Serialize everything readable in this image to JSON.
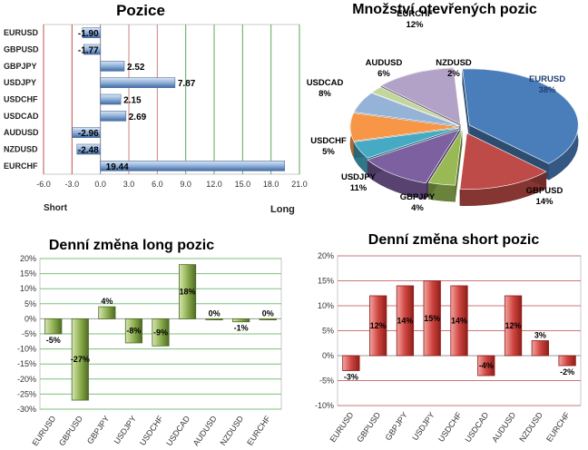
{
  "chart_data": [
    {
      "id": "pozice",
      "type": "bar",
      "orientation": "horizontal",
      "title": "Pozice",
      "categories": [
        "EURUSD",
        "GBPUSD",
        "GBPJPY",
        "USDJPY",
        "USDCHF",
        "USDCAD",
        "AUDUSD",
        "NZDUSD",
        "EURCHF"
      ],
      "values": [
        -1.9,
        -1.77,
        2.52,
        7.87,
        2.15,
        2.69,
        -2.96,
        -2.48,
        19.44
      ],
      "value_labels": [
        "-1.90",
        "-1.77",
        "2.52",
        "7.87",
        "2.15",
        "2.69",
        "-2.96",
        "-2.48",
        "19.44"
      ],
      "xlim": [
        -6.0,
        21.0
      ],
      "xticks": [
        "-6.0",
        "-3.0",
        "0.0",
        "3.0",
        "6.0",
        "9.0",
        "12.0",
        "15.0",
        "18.0",
        "21.0"
      ],
      "left_label": "Short",
      "right_label": "Long",
      "grid": true
    },
    {
      "id": "mnozstvi",
      "type": "pie",
      "title": "Množství otevřených pozic",
      "labels": [
        "EURUSD",
        "GBPUSD",
        "GBPJPY",
        "USDJPY",
        "USDCHF",
        "USDCAD",
        "AUDUSD",
        "NZDUSD",
        "EURCHF"
      ],
      "values": [
        38,
        14,
        4,
        11,
        5,
        8,
        6,
        2,
        12
      ],
      "value_labels": [
        "38%",
        "14%",
        "4%",
        "11%",
        "5%",
        "8%",
        "6%",
        "2%",
        "12%"
      ],
      "colors": [
        "#4a7ebb",
        "#be4b48",
        "#98b954",
        "#7d60a0",
        "#46aac5",
        "#f79646",
        "#95b3d7",
        "#c3d69b",
        "#b3a2c7"
      ]
    },
    {
      "id": "long",
      "type": "bar",
      "title": "Denní změna long pozic",
      "categories": [
        "EURUSD",
        "GBPUSD",
        "GBPJPY",
        "USDJPY",
        "USDCHF",
        "USDCAD",
        "AUDUSD",
        "NZDUSD",
        "EURCHF"
      ],
      "values": [
        -5,
        -27,
        4,
        -8,
        -9,
        18,
        0,
        -1,
        0
      ],
      "value_labels": [
        "-5%",
        "-27%",
        "4%",
        "-8%",
        "-9%",
        "18%",
        "0%",
        "-1%",
        "0%"
      ],
      "ylim": [
        -30,
        20
      ],
      "yticks": [
        "20%",
        "15%",
        "10%",
        "5%",
        "0%",
        "-5%",
        "-10%",
        "-15%",
        "-20%",
        "-25%",
        "-30%"
      ],
      "grid": true
    },
    {
      "id": "short",
      "type": "bar",
      "title": "Denní změna short pozic",
      "categories": [
        "EURUSD",
        "GBPUSD",
        "GBPJPY",
        "USDJPY",
        "USDCHF",
        "USDCAD",
        "AUDUSD",
        "NZDUSD",
        "EURCHF"
      ],
      "values": [
        -3,
        12,
        14,
        15,
        14,
        -4,
        12,
        3,
        -2
      ],
      "value_labels": [
        "-3%",
        "12%",
        "14%",
        "15%",
        "14%",
        "-4%",
        "12%",
        "3%",
        "-2%"
      ],
      "ylim": [
        -10,
        20
      ],
      "yticks": [
        "20%",
        "15%",
        "10%",
        "5%",
        "0%",
        "-5%",
        "-10%"
      ],
      "grid": true
    }
  ]
}
